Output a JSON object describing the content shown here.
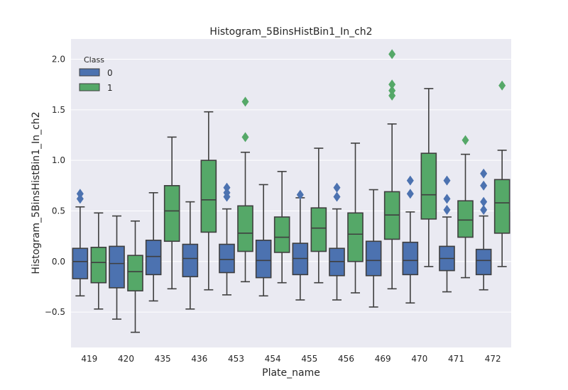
{
  "chart_data": {
    "type": "boxplot",
    "title": "Histogram_5BinsHistBin1_In_ch2",
    "xlabel": "Plate_name",
    "ylabel": "Histogram_5BinsHistBin1_In_ch2",
    "ylim": [
      -0.85,
      2.2
    ],
    "yticks": [
      -0.5,
      0.0,
      0.5,
      1.0,
      1.5,
      2.0
    ],
    "ytick_labels": [
      "−0.5",
      "0.0",
      "0.5",
      "1.0",
      "1.5",
      "2.0"
    ],
    "categories": [
      "419",
      "420",
      "435",
      "436",
      "453",
      "454",
      "455",
      "456",
      "469",
      "470",
      "471",
      "472"
    ],
    "legend": {
      "title": "Class",
      "position": "top-left",
      "entries": [
        {
          "label": "0",
          "color": "#4c72b0"
        },
        {
          "label": "1",
          "color": "#55a868"
        }
      ]
    },
    "series": [
      {
        "name": "0",
        "color": "#4c72b0",
        "boxes": [
          {
            "whislo": -0.34,
            "q1": -0.17,
            "med": 0.0,
            "q3": 0.13,
            "whishi": 0.54,
            "fliers": [
              0.62,
              0.67
            ]
          },
          {
            "whislo": -0.57,
            "q1": -0.26,
            "med": -0.02,
            "q3": 0.15,
            "whishi": 0.45,
            "fliers": []
          },
          {
            "whislo": -0.39,
            "q1": -0.13,
            "med": 0.05,
            "q3": 0.21,
            "whishi": 0.68,
            "fliers": []
          },
          {
            "whislo": -0.47,
            "q1": -0.15,
            "med": 0.03,
            "q3": 0.17,
            "whishi": 0.59,
            "fliers": []
          },
          {
            "whislo": -0.33,
            "q1": -0.11,
            "med": 0.02,
            "q3": 0.17,
            "whishi": 0.52,
            "fliers": [
              0.64,
              0.68,
              0.73
            ]
          },
          {
            "whislo": -0.34,
            "q1": -0.16,
            "med": 0.01,
            "q3": 0.21,
            "whishi": 0.76,
            "fliers": []
          },
          {
            "whislo": -0.38,
            "q1": -0.13,
            "med": 0.03,
            "q3": 0.18,
            "whishi": 0.63,
            "fliers": [
              0.66
            ]
          },
          {
            "whislo": -0.38,
            "q1": -0.14,
            "med": 0.0,
            "q3": 0.13,
            "whishi": 0.52,
            "fliers": [
              0.64,
              0.73
            ]
          },
          {
            "whislo": -0.45,
            "q1": -0.14,
            "med": 0.01,
            "q3": 0.2,
            "whishi": 0.71,
            "fliers": []
          },
          {
            "whislo": -0.41,
            "q1": -0.13,
            "med": 0.01,
            "q3": 0.19,
            "whishi": 0.49,
            "fliers": [
              0.67,
              0.8
            ]
          },
          {
            "whislo": -0.3,
            "q1": -0.09,
            "med": 0.03,
            "q3": 0.15,
            "whishi": 0.44,
            "fliers": [
              0.51,
              0.62,
              0.8
            ]
          },
          {
            "whislo": -0.28,
            "q1": -0.13,
            "med": 0.01,
            "q3": 0.12,
            "whishi": 0.45,
            "fliers": [
              0.51,
              0.59,
              0.75,
              0.87
            ]
          }
        ]
      },
      {
        "name": "1",
        "color": "#55a868",
        "boxes": [
          {
            "whislo": -0.47,
            "q1": -0.21,
            "med": -0.01,
            "q3": 0.14,
            "whishi": 0.48,
            "fliers": []
          },
          {
            "whislo": -0.7,
            "q1": -0.29,
            "med": -0.1,
            "q3": 0.06,
            "whishi": 0.4,
            "fliers": []
          },
          {
            "whislo": -0.27,
            "q1": 0.2,
            "med": 0.5,
            "q3": 0.75,
            "whishi": 1.23,
            "fliers": []
          },
          {
            "whislo": -0.28,
            "q1": 0.29,
            "med": 0.61,
            "q3": 1.0,
            "whishi": 1.48,
            "fliers": []
          },
          {
            "whislo": -0.2,
            "q1": 0.1,
            "med": 0.28,
            "q3": 0.55,
            "whishi": 1.08,
            "fliers": [
              1.23,
              1.58
            ]
          },
          {
            "whislo": -0.21,
            "q1": 0.09,
            "med": 0.24,
            "q3": 0.44,
            "whishi": 0.89,
            "fliers": []
          },
          {
            "whislo": -0.21,
            "q1": 0.1,
            "med": 0.33,
            "q3": 0.53,
            "whishi": 1.12,
            "fliers": []
          },
          {
            "whislo": -0.31,
            "q1": 0.0,
            "med": 0.27,
            "q3": 0.48,
            "whishi": 1.17,
            "fliers": []
          },
          {
            "whislo": -0.27,
            "q1": 0.22,
            "med": 0.46,
            "q3": 0.69,
            "whishi": 1.36,
            "fliers": [
              1.64,
              1.69,
              1.75,
              2.05
            ]
          },
          {
            "whislo": -0.05,
            "q1": 0.42,
            "med": 0.66,
            "q3": 1.07,
            "whishi": 1.71,
            "fliers": []
          },
          {
            "whislo": -0.16,
            "q1": 0.24,
            "med": 0.41,
            "q3": 0.6,
            "whishi": 1.06,
            "fliers": [
              1.2
            ]
          },
          {
            "whislo": -0.05,
            "q1": 0.28,
            "med": 0.58,
            "q3": 0.81,
            "whishi": 1.1,
            "fliers": [
              1.74
            ]
          }
        ]
      }
    ]
  }
}
